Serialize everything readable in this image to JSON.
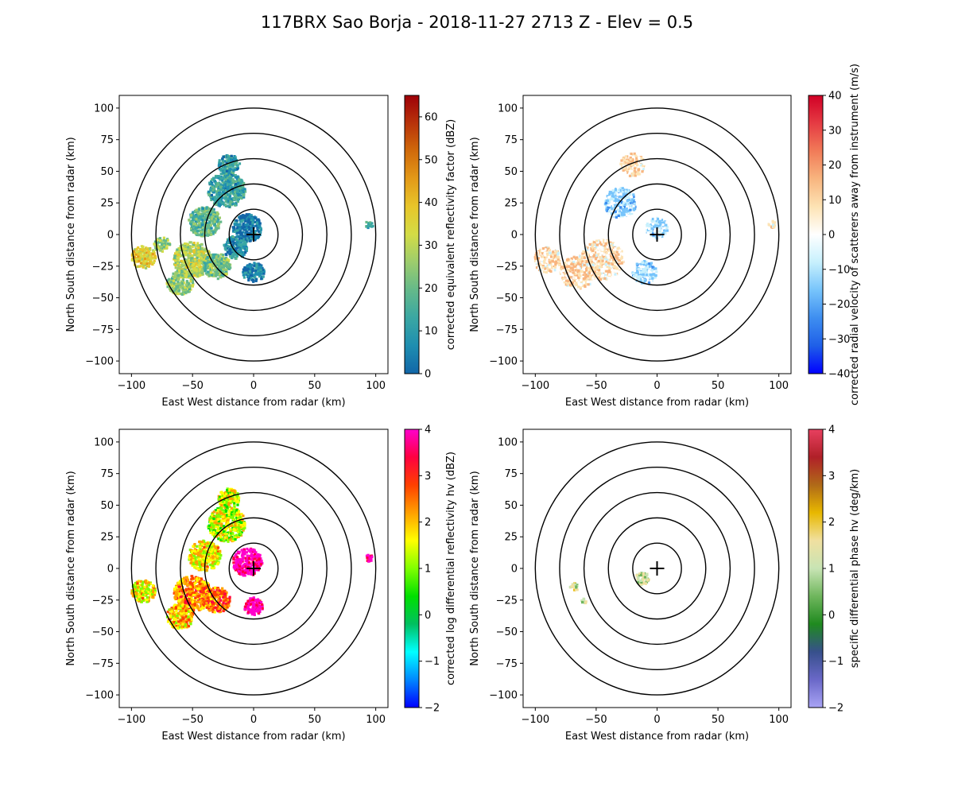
{
  "title": "117BRX Sao Borja - 2018-11-27 2713 Z -  Elev = 0.5",
  "chart_data": [
    {
      "type": "heatmap",
      "field": "reflectivity",
      "xlabel": "East West distance from radar (km)",
      "ylabel": "North South distance from radar (km)",
      "xlim": [
        -110,
        110
      ],
      "ylim": [
        -110,
        110
      ],
      "xticks": [
        -100,
        -50,
        0,
        50,
        100
      ],
      "yticks": [
        -100,
        -75,
        -50,
        -25,
        0,
        25,
        50,
        75,
        100
      ],
      "range_rings_km": [
        20,
        40,
        60,
        80,
        100
      ],
      "colorbar": {
        "label": "corrected equivalent reflectivity factor (dBZ)",
        "min": 0,
        "max": 65,
        "ticks": [
          0,
          10,
          20,
          30,
          40,
          50,
          60
        ],
        "colors": [
          "#1266a8",
          "#1e8eb0",
          "#3aa7a3",
          "#64b98a",
          "#9ccc6d",
          "#d3dc46",
          "#e8c62a",
          "#e39a18",
          "#d06a0b",
          "#b8330a",
          "#9e0008"
        ]
      },
      "echoes": [
        {
          "cx": -22,
          "cy": 35,
          "r": 14,
          "v": 0.22
        },
        {
          "cx": -20,
          "cy": 55,
          "r": 8,
          "v": 0.2
        },
        {
          "cx": -40,
          "cy": 10,
          "r": 12,
          "v": 0.3
        },
        {
          "cx": -50,
          "cy": -20,
          "r": 14,
          "v": 0.45
        },
        {
          "cx": -60,
          "cy": -38,
          "r": 10,
          "v": 0.4
        },
        {
          "cx": -90,
          "cy": -18,
          "r": 9,
          "v": 0.55
        },
        {
          "cx": -75,
          "cy": -8,
          "r": 6,
          "v": 0.4
        },
        {
          "cx": -30,
          "cy": -25,
          "r": 10,
          "v": 0.35
        },
        {
          "cx": -5,
          "cy": 5,
          "r": 11,
          "v": 0.08
        },
        {
          "cx": 0,
          "cy": -30,
          "r": 8,
          "v": 0.12
        },
        {
          "cx": -15,
          "cy": -10,
          "r": 9,
          "v": 0.15
        },
        {
          "cx": 95,
          "cy": 8,
          "r": 3,
          "v": 0.3
        }
      ]
    },
    {
      "type": "heatmap",
      "field": "velocity",
      "xlabel": "East West distance from radar (km)",
      "ylabel": "North South distance from radar (km)",
      "xlim": [
        -110,
        110
      ],
      "ylim": [
        -110,
        110
      ],
      "xticks": [
        -100,
        -50,
        0,
        50,
        100
      ],
      "yticks": [
        -100,
        -75,
        -50,
        -25,
        0,
        25,
        50,
        75,
        100
      ],
      "range_rings_km": [
        20,
        40,
        60,
        80,
        100
      ],
      "colorbar": {
        "label": "corrected radial velocity of scatterers away from instrument (m/s)",
        "min": -40,
        "max": 40,
        "ticks": [
          -40,
          -30,
          -20,
          -10,
          0,
          10,
          20,
          30,
          40
        ],
        "colors": [
          "#0000ff",
          "#1f5fe8",
          "#3e8ef0",
          "#77c4fb",
          "#c7f0fd",
          "#ffffff",
          "#fde3b4",
          "#f8b57f",
          "#f17b58",
          "#e53b43",
          "#d10026"
        ]
      },
      "echoes": [
        {
          "cx": -20,
          "cy": 55,
          "r": 9,
          "v": 0.58
        },
        {
          "cx": -30,
          "cy": 25,
          "r": 12,
          "v": 0.38
        },
        {
          "cx": -45,
          "cy": -20,
          "r": 16,
          "v": 0.57
        },
        {
          "cx": -65,
          "cy": -30,
          "r": 13,
          "v": 0.58
        },
        {
          "cx": -90,
          "cy": -20,
          "r": 10,
          "v": 0.57
        },
        {
          "cx": -10,
          "cy": -30,
          "r": 9,
          "v": 0.38
        },
        {
          "cx": 0,
          "cy": 5,
          "r": 8,
          "v": 0.4
        },
        {
          "cx": 95,
          "cy": 8,
          "r": 3,
          "v": 0.56
        }
      ]
    },
    {
      "type": "heatmap",
      "field": "differential_reflectivity",
      "xlabel": "East West distance from radar (km)",
      "ylabel": "North South distance from radar (km)",
      "xlim": [
        -110,
        110
      ],
      "ylim": [
        -110,
        110
      ],
      "xticks": [
        -100,
        -50,
        0,
        50,
        100
      ],
      "yticks": [
        -100,
        -75,
        -50,
        -25,
        0,
        25,
        50,
        75,
        100
      ],
      "range_rings_km": [
        20,
        40,
        60,
        80,
        100
      ],
      "colorbar": {
        "label": "corrected log differential reflectivity hv (dBZ)",
        "min": -2,
        "max": 4,
        "ticks": [
          -2,
          -1,
          0,
          1,
          2,
          3,
          4
        ],
        "colors": [
          "#0000ff",
          "#0088ff",
          "#00ffff",
          "#00c060",
          "#00e000",
          "#80ff00",
          "#ffff00",
          "#ffa000",
          "#ff4000",
          "#ff0040",
          "#ff00cc"
        ]
      },
      "echoes": [
        {
          "cx": -22,
          "cy": 35,
          "r": 14,
          "v": 0.55
        },
        {
          "cx": -20,
          "cy": 55,
          "r": 8,
          "v": 0.55
        },
        {
          "cx": -40,
          "cy": 10,
          "r": 12,
          "v": 0.6
        },
        {
          "cx": -50,
          "cy": -20,
          "r": 14,
          "v": 0.7
        },
        {
          "cx": -60,
          "cy": -38,
          "r": 10,
          "v": 0.65
        },
        {
          "cx": -90,
          "cy": -18,
          "r": 9,
          "v": 0.6
        },
        {
          "cx": -30,
          "cy": -25,
          "r": 10,
          "v": 0.75
        },
        {
          "cx": -5,
          "cy": 5,
          "r": 11,
          "v": 0.97
        },
        {
          "cx": 0,
          "cy": -30,
          "r": 7,
          "v": 0.95
        },
        {
          "cx": 95,
          "cy": 8,
          "r": 3,
          "v": 0.95
        }
      ]
    },
    {
      "type": "heatmap",
      "field": "specific_differential_phase",
      "xlabel": "East West distance from radar (km)",
      "ylabel": "North South distance from radar (km)",
      "xlim": [
        -110,
        110
      ],
      "ylim": [
        -110,
        110
      ],
      "xticks": [
        -100,
        -50,
        0,
        50,
        100
      ],
      "yticks": [
        -100,
        -75,
        -50,
        -25,
        0,
        25,
        50,
        75,
        100
      ],
      "range_rings_km": [
        20,
        40,
        60,
        80,
        100
      ],
      "colorbar": {
        "label": "specific differential phase hv (deg/km)",
        "min": -2,
        "max": 4,
        "ticks": [
          -2,
          -1,
          0,
          1,
          2,
          3,
          4
        ],
        "colors": [
          "#a9a4f5",
          "#6a68c8",
          "#37508c",
          "#1f8a1f",
          "#6fb65d",
          "#c8e4b4",
          "#f0e0a0",
          "#e8b800",
          "#b06a18",
          "#b02028",
          "#e84060"
        ]
      },
      "echoes": [
        {
          "cx": -12,
          "cy": -8,
          "r": 5,
          "v": 0.5
        },
        {
          "cx": -68,
          "cy": -15,
          "r": 3,
          "v": 0.52
        },
        {
          "cx": -60,
          "cy": -26,
          "r": 2,
          "v": 0.5
        }
      ]
    }
  ]
}
